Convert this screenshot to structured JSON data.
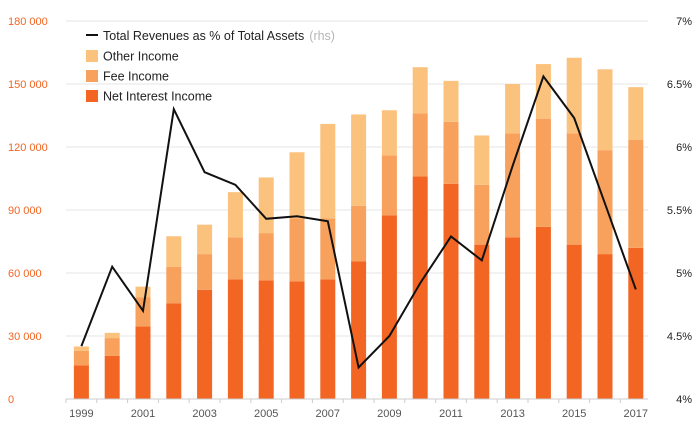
{
  "chart_data": {
    "type": "bar",
    "stacked": true,
    "x": [
      1999,
      2000,
      2001,
      2002,
      2003,
      2004,
      2005,
      2006,
      2007,
      2008,
      2009,
      2010,
      2011,
      2012,
      2013,
      2014,
      2015,
      2016,
      2017
    ],
    "x_tick_labels": [
      "1999",
      "2001",
      "2003",
      "2005",
      "2007",
      "2009",
      "2011",
      "2013",
      "2015",
      "2017"
    ],
    "y_left": {
      "ylim": [
        0,
        180000
      ],
      "ticks": [
        0,
        30000,
        60000,
        90000,
        120000,
        150000,
        180000
      ],
      "tick_labels": [
        "0",
        "30 000",
        "60 000",
        "90 000",
        "120 000",
        "150 000",
        "180 000"
      ]
    },
    "y_right": {
      "ylim": [
        4,
        7
      ],
      "ticks": [
        4,
        4.5,
        5,
        5.5,
        6,
        6.5,
        7
      ],
      "tick_labels": [
        "4%",
        "4.5%",
        "5%",
        "5.5%",
        "6%",
        "6.5%",
        "7%"
      ]
    },
    "series": [
      {
        "name": "Net Interest Income",
        "color": "#f26522",
        "values": [
          16000,
          20500,
          34500,
          45500,
          52000,
          57000,
          56500,
          56000,
          57000,
          65500,
          87500,
          106000,
          102500,
          73500,
          77000,
          82000,
          73500,
          69000,
          72000
        ]
      },
      {
        "name": "Fee Income",
        "color": "#f7a15d",
        "values": [
          7000,
          8500,
          14000,
          17500,
          17000,
          20000,
          22500,
          30000,
          29000,
          26500,
          28500,
          30000,
          29500,
          28500,
          49500,
          51500,
          53000,
          49500,
          51500
        ]
      },
      {
        "name": "Other Income",
        "color": "#fbc27e",
        "values": [
          2000,
          2500,
          5000,
          14500,
          14000,
          21500,
          26500,
          31500,
          45000,
          43500,
          21500,
          22000,
          19500,
          23500,
          23500,
          26000,
          36000,
          38500,
          25000
        ]
      },
      {
        "name": "Total Revenues as % of Total Assets",
        "name_suffix": "(rhs)",
        "type": "line",
        "axis": "right",
        "color": "#111111",
        "values": [
          4.42,
          5.05,
          4.7,
          6.3,
          5.8,
          5.7,
          5.43,
          5.45,
          5.41,
          4.25,
          4.5,
          4.92,
          5.29,
          5.1,
          5.85,
          6.56,
          6.23,
          5.55,
          4.87
        ]
      }
    ]
  }
}
